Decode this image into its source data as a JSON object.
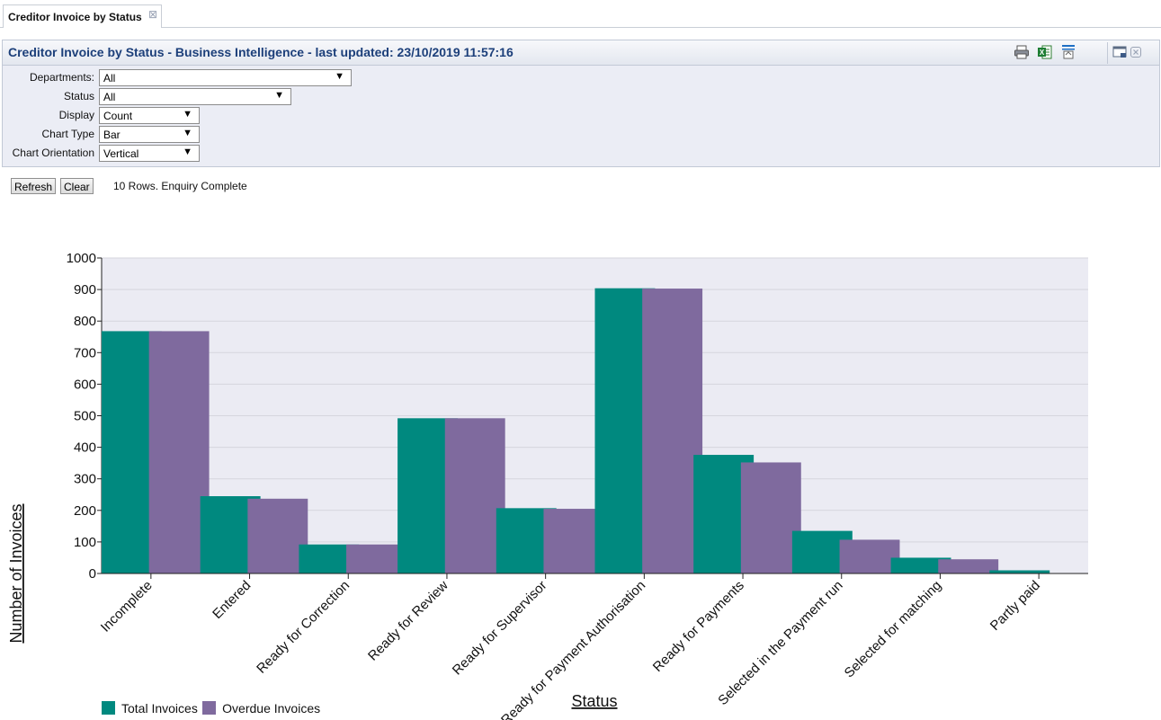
{
  "tab": {
    "label": "Creditor Invoice by Status"
  },
  "header": {
    "title": "Creditor Invoice by Status - Business Intelligence - last updated: 23/10/2019 11:57:16"
  },
  "icons": {
    "print": "printer-icon",
    "excel": "excel-icon",
    "export": "export-icon",
    "window": "window-icon",
    "close": "close-icon"
  },
  "filters": {
    "departments": {
      "label": "Departments:",
      "value": "All"
    },
    "status": {
      "label": "Status",
      "value": "All"
    },
    "display": {
      "label": "Display",
      "value": "Count"
    },
    "chart_type": {
      "label": "Chart Type",
      "value": "Bar"
    },
    "chart_orientation": {
      "label": "Chart Orientation",
      "value": "Vertical"
    }
  },
  "actions": {
    "refresh_label": "Refresh",
    "clear_label": "Clear",
    "status_text": "10 Rows. Enquiry Complete"
  },
  "colors": {
    "total": "#00897f",
    "overdue": "#7f6a9e",
    "plot_bg": "#ebebf3",
    "grid": "#d5d5dd"
  },
  "chart_data": {
    "type": "bar",
    "xlabel": "Status",
    "ylabel": "Number of Invoices",
    "ylim": [
      0,
      1000
    ],
    "yticks": [
      0,
      100,
      200,
      300,
      400,
      500,
      600,
      700,
      800,
      900,
      1000
    ],
    "categories": [
      "Incomplete",
      "Entered",
      "Ready for Correction",
      "Ready for Review",
      "Ready for Supervisor",
      "Ready for Payment Authorisation",
      "Ready for Payments",
      "Selected in the Payment run",
      "Selected for matching",
      "Partly paid"
    ],
    "series": [
      {
        "name": "Total Invoices",
        "values": [
          768,
          245,
          92,
          492,
          207,
          904,
          376,
          135,
          50,
          10
        ]
      },
      {
        "name": "Overdue Invoices",
        "values": [
          768,
          237,
          92,
          492,
          205,
          903,
          352,
          107,
          45,
          0
        ]
      }
    ],
    "legend_position": "bottom-left",
    "grid": true
  }
}
